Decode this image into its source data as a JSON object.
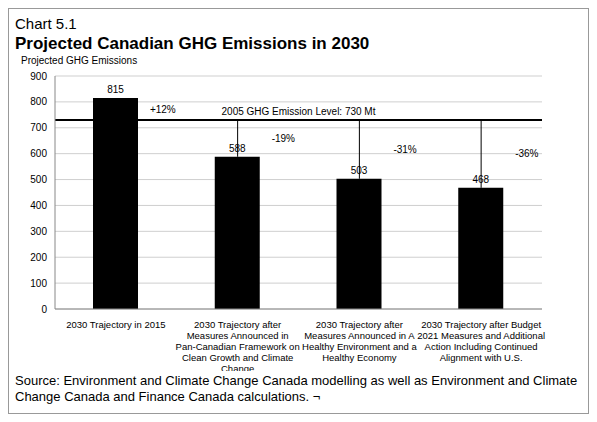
{
  "chart_data": {
    "type": "bar",
    "chart_number": "Chart 5.1",
    "title": "Projected Canadian GHG Emissions in 2030",
    "ylabel": "Projected GHG Emissions",
    "categories": [
      "2030 Trajectory in 2015",
      "2030 Trajectory after Measures Announced in Pan-Canadian Framework on Clean Growth and Climate Change",
      "2030 Trajectory after Measures Announced in A Healthy Environment and a Healthy Economy",
      "2030 Trajectory after Budget 2021 Measures and Additional Action Including Continued Alignment with U.S."
    ],
    "values": [
      815,
      588,
      503,
      468
    ],
    "color": "#000000",
    "ylim": [
      0,
      900
    ],
    "yticks": [
      0,
      100,
      200,
      300,
      400,
      500,
      600,
      700,
      800,
      900
    ],
    "grid": true,
    "data_labels": true,
    "reference_line": {
      "value": 730,
      "label": "2005 GHG Emission Level: 730 Mt"
    },
    "annotations": [
      {
        "category": "2030 Trajectory in 2015",
        "text": "+12%"
      },
      {
        "category": "2030 Trajectory after Measures Announced in Pan-Canadian Framework on Clean Growth and Climate Change",
        "text": "-19%"
      },
      {
        "category": "2030 Trajectory after Measures Announced in A Healthy Environment and a Healthy Economy",
        "text": "-31%"
      },
      {
        "category": "2030 Trajectory after Budget 2021 Measures and Additional Action Including Continued Alignment with U.S.",
        "text": "-36%"
      }
    ],
    "source": "Source: Environment and Climate Change Canada modelling as well as Environment and Climate Change Canada and Finance Canada calculations. ¬"
  }
}
